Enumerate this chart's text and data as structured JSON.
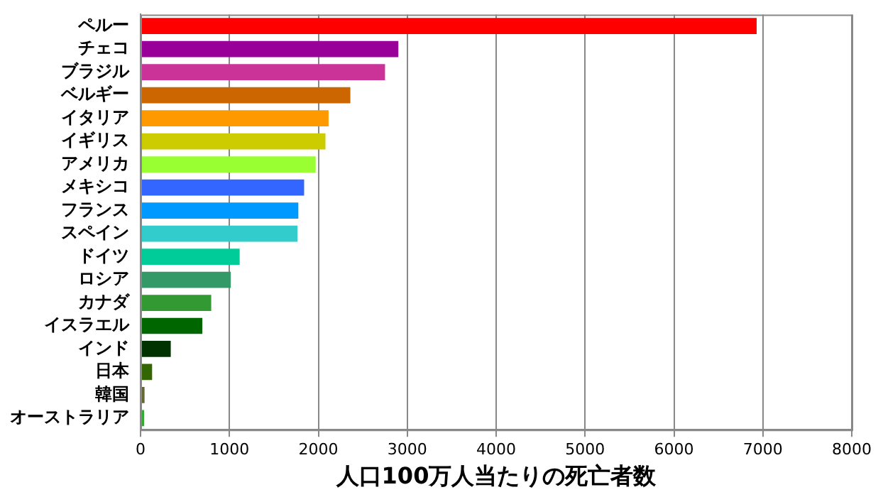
{
  "chart_data": {
    "type": "bar",
    "orientation": "horizontal",
    "xlabel": "人口100万人当たりの死亡者数",
    "categories": [
      "ペルー",
      "チェコ",
      "ブラジル",
      "ベルギー",
      "イタリア",
      "イギリス",
      "アメリカ",
      "メキシコ",
      "フランス",
      "スペイン",
      "ドイツ",
      "ロシア",
      "カナダ",
      "イスラエル",
      "インド",
      "日本",
      "韓国",
      "オーストラリア"
    ],
    "values": [
      6930,
      2900,
      2750,
      2360,
      2115,
      2080,
      1970,
      1840,
      1775,
      1765,
      1115,
      1015,
      795,
      695,
      340,
      130,
      45,
      40
    ],
    "colors": [
      "#ff0000",
      "#990099",
      "#cc3399",
      "#cc6600",
      "#ff9900",
      "#cccc00",
      "#99ff33",
      "#3366ff",
      "#0099ff",
      "#33cccc",
      "#00cc99",
      "#339966",
      "#339933",
      "#006600",
      "#003300",
      "#336600",
      "#666633",
      "#33aa33"
    ],
    "xlim": [
      0,
      8000
    ],
    "xticks": [
      0,
      1000,
      2000,
      3000,
      4000,
      5000,
      6000,
      7000,
      8000
    ],
    "grid": "x",
    "legend": false
  }
}
